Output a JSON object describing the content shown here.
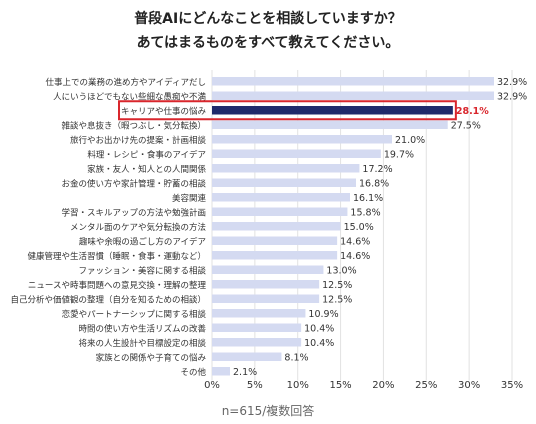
{
  "titles": [
    "普段AIにどんなことを相談していますか？",
    "あてはまるものをすべて教えてください。"
  ],
  "note": "n=615/複数回答",
  "chart_data": {
    "type": "bar",
    "orientation": "horizontal",
    "title": "普段AIにどんなことを相談していますか？ あてはまるものをすべて教えてください。",
    "categories": [
      "仕事上での業務の進め方やアイディアだし",
      "人にいうほどでもない些細な愚痴や不満",
      "キャリアや仕事の悩み",
      "雑談や息抜き（暇つぶし・気分転換）",
      "旅行やお出かけ先の提案・計画相談",
      "料理・レシピ・食事のアイデア",
      "家族・友人・知人との人間関係",
      "お金の使い方や家計管理・貯蓄の相談",
      "美容関連",
      "学習・スキルアップの方法や勉強計画",
      "メンタル面のケアや気分転換の方法",
      "趣味や余暇の過ごし方のアイデア",
      "健康管理や生活習慣（睡眠・食事・運動など）",
      "ファッション・美容に関する相談",
      "ニュースや時事問題への意見交換・理解の整理",
      "自己分析や価値観の整理（自分を知るための相談）",
      "恋愛やパートナーシップに関する相談",
      "時間の使い方や生活リズムの改善",
      "将来の人生設計や目標設定の相談",
      "家族との関係や子育ての悩み",
      "その他"
    ],
    "values": [
      32.9,
      32.9,
      28.1,
      27.5,
      21.0,
      19.7,
      17.2,
      16.8,
      16.1,
      15.8,
      15.0,
      14.6,
      14.6,
      13.0,
      12.5,
      12.5,
      10.9,
      10.4,
      10.4,
      8.1,
      2.1
    ],
    "value_labels": [
      "32.9%",
      "32.9%",
      "28.1%",
      "27.5%",
      "21.0%",
      "19.7%",
      "17.2%",
      "16.8%",
      "16.1%",
      "15.8%",
      "15.0%",
      "14.6%",
      "14.6%",
      "13.0%",
      "12.5%",
      "12.5%",
      "10.9%",
      "10.4%",
      "10.4%",
      "8.1%",
      "2.1%"
    ],
    "highlight_index": 2,
    "xlim": [
      0,
      35
    ],
    "xticks": [
      0,
      5,
      10,
      15,
      20,
      25,
      30,
      35
    ],
    "xtick_labels": [
      "0%",
      "5%",
      "10%",
      "15%",
      "20%",
      "25%",
      "30%",
      "35%"
    ],
    "grid": true,
    "colors": {
      "bar": "#d4daf1",
      "highlight_bar": "#1f2a6b",
      "highlight_border": "#d9262c",
      "highlight_label": "#d9262c",
      "text": "#333333",
      "grid": "#e2e2e2"
    }
  }
}
